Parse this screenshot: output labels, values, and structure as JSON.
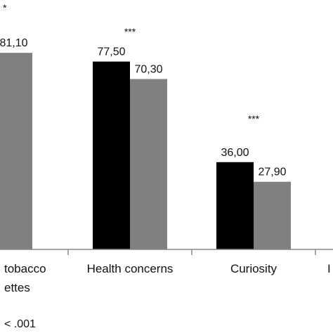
{
  "chart_data": {
    "type": "bar",
    "categories": [
      "tobacco\nettes",
      "Health concerns",
      "Curiosity",
      ""
    ],
    "series": [
      {
        "color": "#000000",
        "values": [
          null,
          77.5,
          36.0,
          null
        ],
        "labels": [
          "",
          "77,50",
          "36,00",
          ""
        ]
      },
      {
        "color": "#808080",
        "values": [
          81.1,
          70.3,
          27.9,
          null
        ],
        "labels": [
          "81,10",
          "70,30",
          "27,90",
          ""
        ]
      }
    ],
    "significance": [
      "*",
      "***",
      "***",
      ""
    ],
    "ylim": [
      0,
      100
    ],
    "grid": false,
    "footnote": "< .001",
    "edge_fragment": "I"
  }
}
